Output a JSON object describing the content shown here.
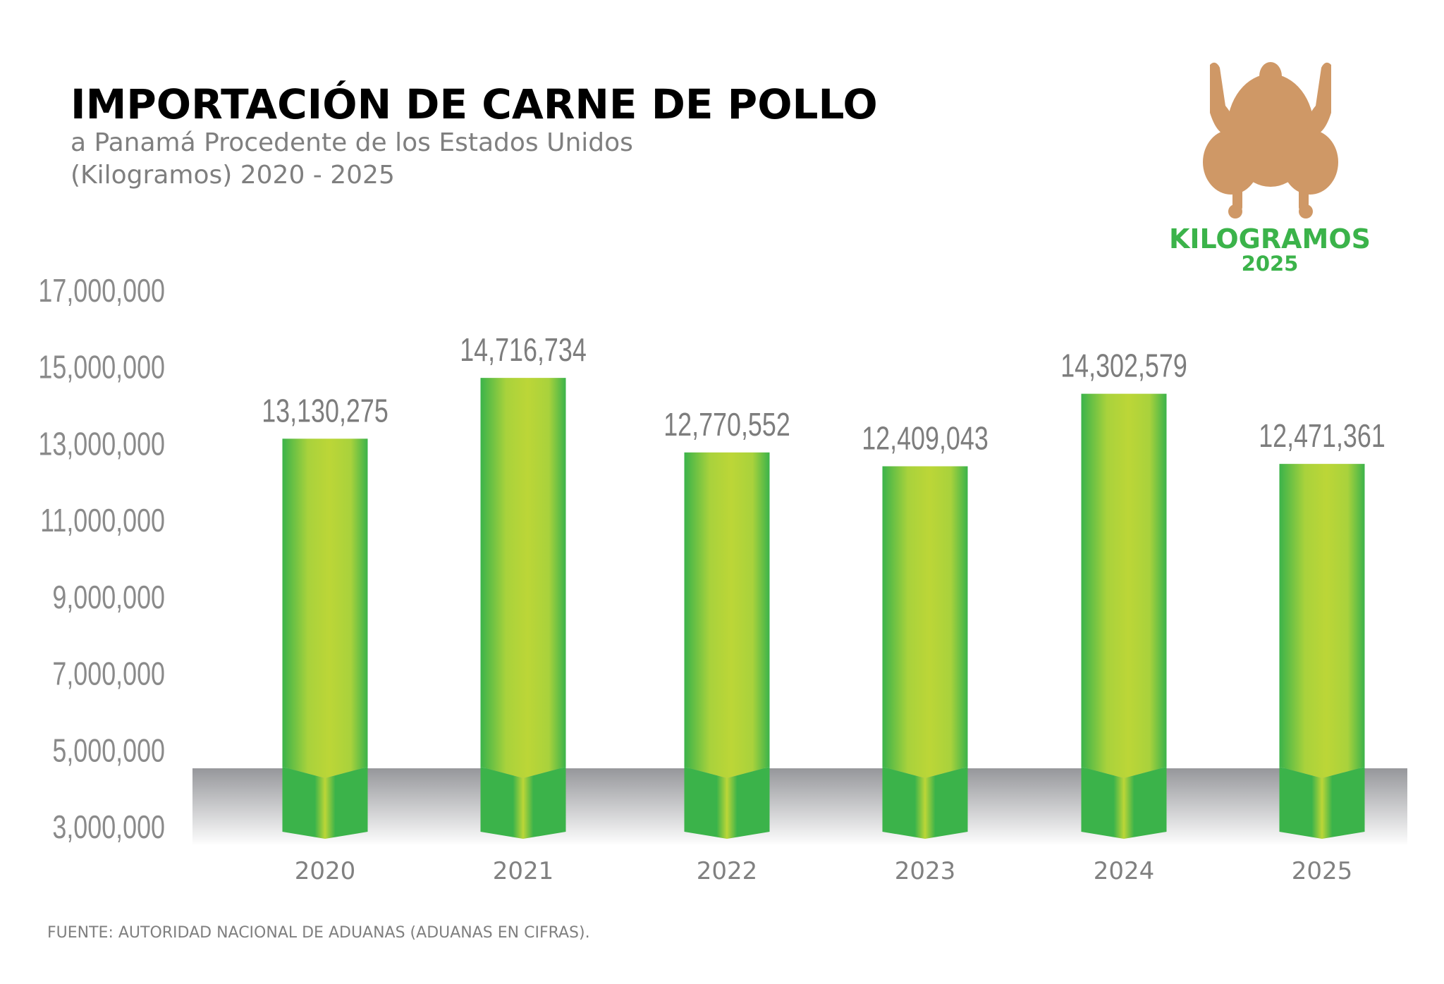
{
  "colors": {
    "bar_dark": "#3bb34a",
    "bar_light": "#bcd637",
    "chicken": "#cf9866",
    "logo_text": "#3bb34a",
    "axis_text": "#8a8a8a"
  },
  "logo": {
    "icon": "chicken-icon",
    "line1": "KILOGRAMOS",
    "line2": "2025"
  },
  "source": "FUENTE: AUTORIDAD NACIONAL DE ADUANAS (ADUANAS EN CIFRAS).",
  "chart_data": {
    "type": "bar",
    "title": "IMPORTACIÓN DE CARNE DE POLLO",
    "subtitle_lines": [
      "a Panamá Procedente de los Estados Unidos",
      "(Kilogramos) 2020 - 2025"
    ],
    "xlabel": "",
    "ylabel": "",
    "categories": [
      "2020",
      "2021",
      "2022",
      "2023",
      "2024",
      "2025"
    ],
    "values": [
      13130275,
      14716734,
      12770552,
      12409043,
      14302579,
      12471361
    ],
    "data_labels": [
      "13,130,275",
      "14,716,734",
      "12,770,552",
      "12,409,043",
      "14,302,579",
      "12,471,361"
    ],
    "yticks": [
      "3,000,000",
      "5,000,000",
      "7,000,000",
      "9,000,000",
      "11,000,000",
      "13,000,000",
      "15,000,000",
      "17,000,000"
    ],
    "ytick_values": [
      3000000,
      5000000,
      7000000,
      9000000,
      11000000,
      13000000,
      15000000,
      17000000
    ],
    "ylim": [
      3000000,
      17000000
    ],
    "grid": false,
    "legend": "none"
  }
}
